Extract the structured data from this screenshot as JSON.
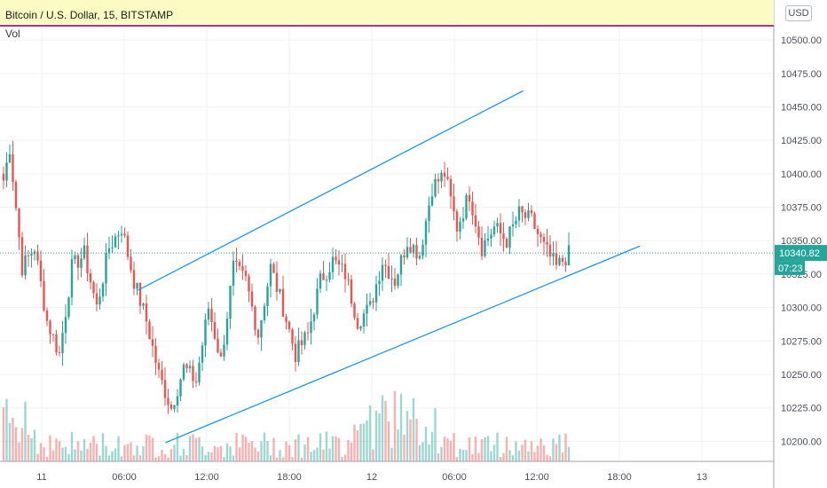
{
  "header": {
    "title": "Bitcoin / U.S. Dollar, 15, BITSTAMP",
    "indicator_label": "Vol",
    "currency_button": "USD"
  },
  "chart_data": {
    "type": "candlestick",
    "symbol": "Bitcoin / U.S. Dollar",
    "interval": "15",
    "exchange": "BITSTAMP",
    "currency": "USD",
    "volume_indicator": "Vol",
    "last_price": "10340.82",
    "countdown": "07:23",
    "y_ticks": [
      "10200.00",
      "10225.00",
      "10250.00",
      "10275.00",
      "10300.00",
      "10325.00",
      "10350.00",
      "10375.00",
      "10400.00",
      "10425.00",
      "10450.00",
      "10475.00",
      "10500.00"
    ],
    "x_ticks": [
      "11",
      "06:00",
      "12:00",
      "18:00",
      "12",
      "06:00",
      "12:00",
      "18:00",
      "13"
    ],
    "ylim": [
      10185,
      10510
    ],
    "channel_lines": [
      {
        "name": "upper",
        "start": {
          "time": "11 07:00",
          "price": 10313
        },
        "end": {
          "time": "12 11:00",
          "price": 10462
        }
      },
      {
        "name": "lower",
        "start": {
          "time": "11 09:00",
          "price": 10199
        },
        "end": {
          "time": "12 19:30",
          "price": 10346
        }
      }
    ],
    "colors": {
      "up": "#26a69a",
      "down": "#ef5350",
      "line": "#2196f3",
      "price_line": "#26a69a",
      "header_border": "#9c3b8e"
    },
    "grid": true
  }
}
